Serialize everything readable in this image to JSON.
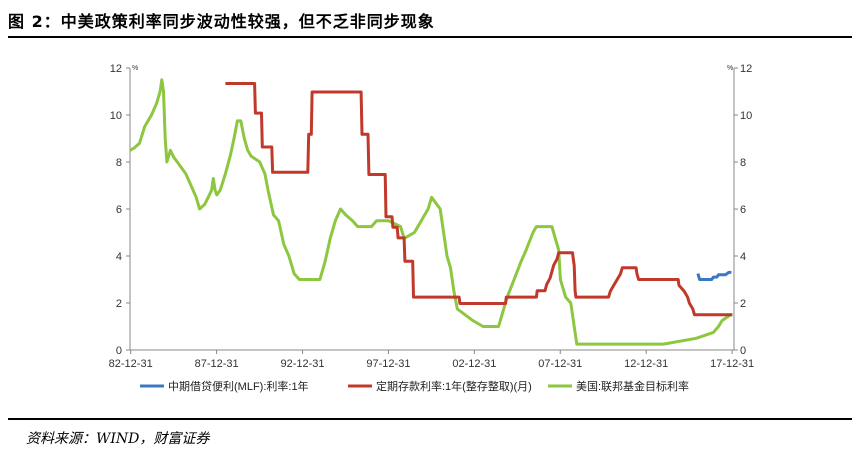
{
  "page": {
    "title": "图 2：中美政策利率同步波动性较强，但不乏非同步现象",
    "source": "资料来源：WIND，财富证券"
  },
  "chart_data": {
    "type": "line",
    "x_tick_labels": [
      "82-12-31",
      "87-12-31",
      "92-12-31",
      "97-12-31",
      "02-12-31",
      "07-12-31",
      "12-12-31",
      "17-12-31"
    ],
    "y_ticks_left": [
      "0",
      "2",
      "4",
      "6",
      "8",
      "10",
      "12"
    ],
    "y_ticks_right": [
      "0",
      "2",
      "4",
      "6",
      "8",
      "10",
      "12"
    ],
    "y_unit_left": "%",
    "y_unit_right": "%",
    "ylim": [
      0,
      12
    ],
    "xlim": [
      1982.95,
      2018.1
    ],
    "grid": false,
    "legend_position": "bottom",
    "series": [
      {
        "name": "中期借贷便利(MLF):利率:1年",
        "color": "#3b78c4",
        "points": [
          [
            2016.0,
            3.25
          ],
          [
            2016.1,
            3.0
          ],
          [
            2016.8,
            3.0
          ],
          [
            2016.9,
            3.1
          ],
          [
            2017.1,
            3.1
          ],
          [
            2017.2,
            3.2
          ],
          [
            2017.6,
            3.2
          ],
          [
            2017.8,
            3.3
          ],
          [
            2017.95,
            3.3
          ]
        ]
      },
      {
        "name": "定期存款利率:1年(整存整取)(月)",
        "color": "#c0392b",
        "points": [
          [
            1988.5,
            11.34
          ],
          [
            1989.0,
            11.34
          ],
          [
            1989.4,
            11.34
          ],
          [
            1989.6,
            11.34
          ],
          [
            1990.2,
            11.34
          ],
          [
            1990.25,
            10.08
          ],
          [
            1990.6,
            10.08
          ],
          [
            1990.65,
            8.64
          ],
          [
            1991.2,
            8.64
          ],
          [
            1991.25,
            7.56
          ],
          [
            1993.3,
            7.56
          ],
          [
            1993.35,
            9.18
          ],
          [
            1993.5,
            9.18
          ],
          [
            1993.55,
            10.98
          ],
          [
            1996.4,
            10.98
          ],
          [
            1996.45,
            9.18
          ],
          [
            1996.8,
            9.18
          ],
          [
            1996.85,
            7.47
          ],
          [
            1997.8,
            7.47
          ],
          [
            1997.85,
            5.67
          ],
          [
            1998.2,
            5.67
          ],
          [
            1998.25,
            5.22
          ],
          [
            1998.5,
            5.22
          ],
          [
            1998.55,
            4.77
          ],
          [
            1998.9,
            4.77
          ],
          [
            1998.95,
            3.78
          ],
          [
            1999.4,
            3.78
          ],
          [
            1999.45,
            2.25
          ],
          [
            2002.1,
            2.25
          ],
          [
            2002.15,
            1.98
          ],
          [
            2004.8,
            1.98
          ],
          [
            2004.85,
            2.25
          ],
          [
            2006.6,
            2.25
          ],
          [
            2006.65,
            2.52
          ],
          [
            2007.1,
            2.52
          ],
          [
            2007.2,
            2.79
          ],
          [
            2007.4,
            3.06
          ],
          [
            2007.5,
            3.33
          ],
          [
            2007.6,
            3.6
          ],
          [
            2007.8,
            3.87
          ],
          [
            2007.9,
            4.14
          ],
          [
            2008.7,
            4.14
          ],
          [
            2008.75,
            3.87
          ],
          [
            2008.8,
            3.6
          ],
          [
            2008.85,
            2.52
          ],
          [
            2008.9,
            2.25
          ],
          [
            2010.8,
            2.25
          ],
          [
            2010.9,
            2.5
          ],
          [
            2011.1,
            2.75
          ],
          [
            2011.3,
            3.0
          ],
          [
            2011.5,
            3.25
          ],
          [
            2011.6,
            3.5
          ],
          [
            2012.4,
            3.5
          ],
          [
            2012.45,
            3.25
          ],
          [
            2012.55,
            3.0
          ],
          [
            2014.85,
            3.0
          ],
          [
            2014.9,
            2.75
          ],
          [
            2015.2,
            2.5
          ],
          [
            2015.4,
            2.25
          ],
          [
            2015.5,
            2.0
          ],
          [
            2015.7,
            1.75
          ],
          [
            2015.8,
            1.5
          ],
          [
            2018.0,
            1.5
          ]
        ]
      },
      {
        "name": "美国:联邦基金目标利率",
        "color": "#8dc63f",
        "points": [
          [
            1982.95,
            8.5
          ],
          [
            1983.2,
            8.6
          ],
          [
            1983.5,
            8.8
          ],
          [
            1983.8,
            9.5
          ],
          [
            1984.2,
            10.0
          ],
          [
            1984.5,
            10.5
          ],
          [
            1984.7,
            11.0
          ],
          [
            1984.8,
            11.5
          ],
          [
            1984.9,
            11.0
          ],
          [
            1985.0,
            9.0
          ],
          [
            1985.1,
            8.0
          ],
          [
            1985.3,
            8.5
          ],
          [
            1985.5,
            8.2
          ],
          [
            1985.7,
            8.0
          ],
          [
            1985.9,
            7.8
          ],
          [
            1986.2,
            7.5
          ],
          [
            1986.5,
            7.0
          ],
          [
            1986.8,
            6.5
          ],
          [
            1987.0,
            6.0
          ],
          [
            1987.3,
            6.2
          ],
          [
            1987.5,
            6.5
          ],
          [
            1987.7,
            6.8
          ],
          [
            1987.8,
            7.3
          ],
          [
            1987.9,
            6.8
          ],
          [
            1988.0,
            6.6
          ],
          [
            1988.2,
            6.8
          ],
          [
            1988.5,
            7.5
          ],
          [
            1988.8,
            8.3
          ],
          [
            1989.0,
            9.0
          ],
          [
            1989.2,
            9.75
          ],
          [
            1989.4,
            9.75
          ],
          [
            1989.6,
            9.0
          ],
          [
            1989.8,
            8.5
          ],
          [
            1990.0,
            8.25
          ],
          [
            1990.5,
            8.0
          ],
          [
            1990.8,
            7.5
          ],
          [
            1991.0,
            6.75
          ],
          [
            1991.3,
            5.75
          ],
          [
            1991.6,
            5.5
          ],
          [
            1991.9,
            4.5
          ],
          [
            1992.2,
            4.0
          ],
          [
            1992.5,
            3.25
          ],
          [
            1992.8,
            3.0
          ],
          [
            1993.5,
            3.0
          ],
          [
            1994.0,
            3.0
          ],
          [
            1994.3,
            3.75
          ],
          [
            1994.6,
            4.75
          ],
          [
            1994.9,
            5.5
          ],
          [
            1995.2,
            6.0
          ],
          [
            1995.5,
            5.75
          ],
          [
            1995.9,
            5.5
          ],
          [
            1996.2,
            5.25
          ],
          [
            1997.0,
            5.25
          ],
          [
            1997.3,
            5.5
          ],
          [
            1998.0,
            5.5
          ],
          [
            1998.7,
            5.25
          ],
          [
            1998.9,
            4.75
          ],
          [
            1999.5,
            5.0
          ],
          [
            1999.9,
            5.5
          ],
          [
            2000.3,
            6.0
          ],
          [
            2000.5,
            6.5
          ],
          [
            2001.0,
            6.0
          ],
          [
            2001.2,
            5.0
          ],
          [
            2001.4,
            4.0
          ],
          [
            2001.6,
            3.5
          ],
          [
            2001.8,
            2.5
          ],
          [
            2002.0,
            1.75
          ],
          [
            2002.9,
            1.25
          ],
          [
            2003.5,
            1.0
          ],
          [
            2004.4,
            1.0
          ],
          [
            2004.6,
            1.5
          ],
          [
            2004.9,
            2.25
          ],
          [
            2005.3,
            3.0
          ],
          [
            2005.7,
            3.75
          ],
          [
            2006.0,
            4.25
          ],
          [
            2006.4,
            5.0
          ],
          [
            2006.6,
            5.25
          ],
          [
            2007.5,
            5.25
          ],
          [
            2007.7,
            4.75
          ],
          [
            2007.9,
            4.25
          ],
          [
            2008.0,
            3.0
          ],
          [
            2008.3,
            2.25
          ],
          [
            2008.6,
            2.0
          ],
          [
            2008.8,
            1.0
          ],
          [
            2008.95,
            0.25
          ],
          [
            2012.0,
            0.25
          ],
          [
            2014.0,
            0.25
          ],
          [
            2015.9,
            0.5
          ],
          [
            2016.9,
            0.75
          ],
          [
            2017.2,
            1.0
          ],
          [
            2017.4,
            1.25
          ],
          [
            2017.9,
            1.5
          ],
          [
            2018.0,
            1.5
          ]
        ]
      }
    ]
  }
}
